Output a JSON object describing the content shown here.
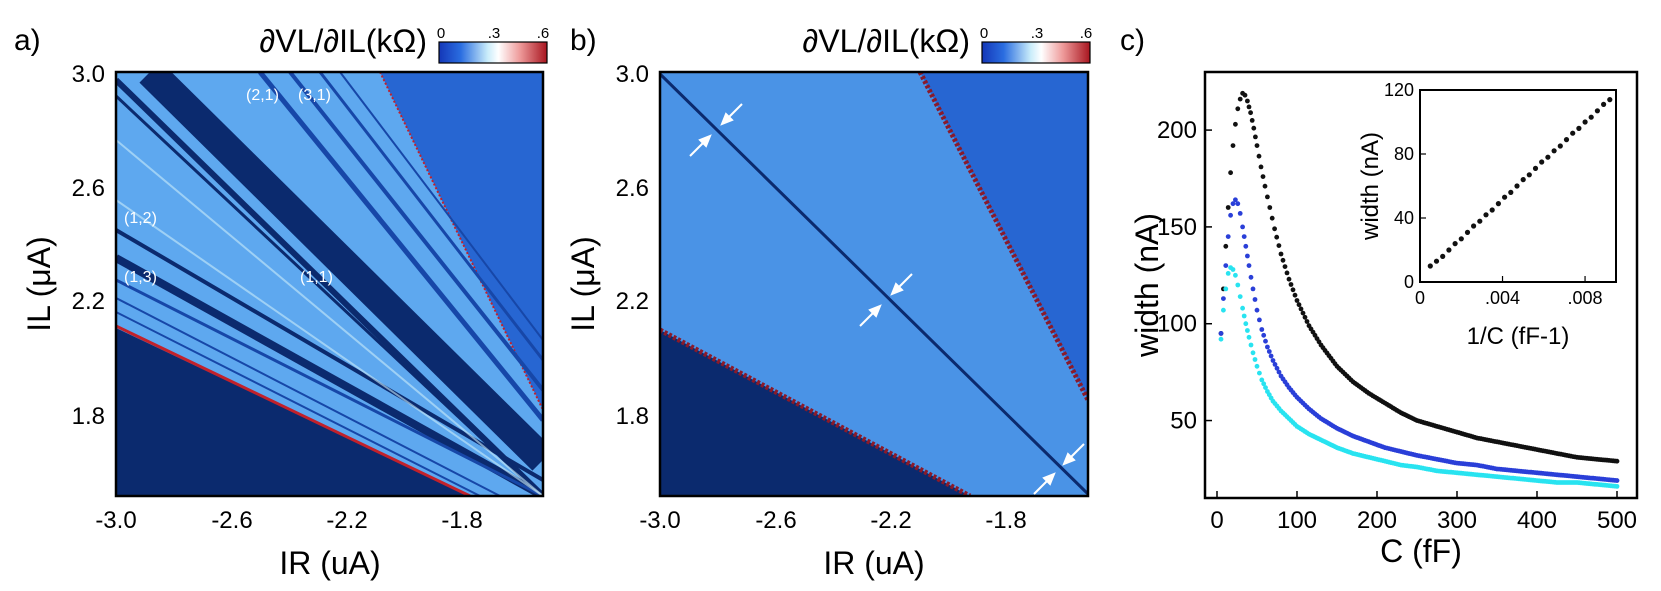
{
  "figure": {
    "panel_a_label": "a)",
    "panel_b_label": "b)",
    "panel_c_label": "c)"
  },
  "panels": {
    "a": {
      "colorbar_title": "∂VL/∂IL(kΩ)",
      "colorbar_ticks": [
        "0",
        ".3",
        ".6"
      ],
      "x_ticks": [
        "-3.0",
        "-2.6",
        "-2.2",
        "-1.8"
      ],
      "y_ticks": [
        "3.0",
        "2.6",
        "2.2",
        "1.8"
      ],
      "x_label": "IR (uA)",
      "y_label": "IL (μA)",
      "annotations": [
        "(2,1)",
        "(3,1)",
        "(1,2)",
        "(1,3)",
        "(1,1)"
      ]
    },
    "b": {
      "colorbar_title": "∂VL/∂IL(kΩ)",
      "colorbar_ticks": [
        "0",
        ".3",
        ".6"
      ],
      "x_ticks": [
        "-3.0",
        "-2.6",
        "-2.2",
        "-1.8"
      ],
      "y_ticks": [
        "3.0",
        "2.6",
        "2.2",
        "1.8"
      ],
      "x_label": "IR (uA)",
      "y_label": "IL (μA)"
    }
  },
  "colors": {
    "dark_blue": "#0b2a6e",
    "mid_blue": "#2f6fd6",
    "light_blue": "#5ea8ef",
    "red": "#c2212b",
    "black_series": "#111111",
    "blue_series": "#2a3fd8",
    "cyan_series": "#28e3f0"
  },
  "chart_data": [
    {
      "type": "heatmap",
      "panel": "a",
      "xlabel": "IR (uA)",
      "ylabel": "IL (μA)",
      "xlim": [
        -3.0,
        -1.52
      ],
      "ylim": [
        1.5,
        3.0
      ],
      "colorbar": {
        "label": "∂VL/∂IL(kΩ)",
        "range": [
          0,
          0.6
        ]
      },
      "annotations": [
        "(2,1)",
        "(3,1)",
        "(1,2)",
        "(1,3)",
        "(1,1)"
      ]
    },
    {
      "type": "heatmap",
      "panel": "b",
      "xlabel": "IR (uA)",
      "ylabel": "IL (μA)",
      "xlim": [
        -3.0,
        -1.52
      ],
      "ylim": [
        1.5,
        3.0
      ],
      "colorbar": {
        "label": "∂VL/∂IL(kΩ)",
        "range": [
          0,
          0.6
        ]
      }
    },
    {
      "type": "scatter",
      "panel": "c",
      "xlabel": "C (fF)",
      "ylabel": "width (nA)",
      "xlim": [
        -15,
        525
      ],
      "ylim": [
        10,
        230
      ],
      "x_ticks": [
        "0",
        "100",
        "200",
        "300",
        "400",
        "500"
      ],
      "y_ticks": [
        "50",
        "100",
        "150",
        "200"
      ],
      "series": [
        {
          "name": "black",
          "color": "#111111",
          "x": [
            5,
            8,
            11,
            14,
            17,
            20,
            23,
            26,
            29,
            32,
            35,
            38,
            42,
            46,
            50,
            55,
            60,
            66,
            72,
            80,
            90,
            100,
            115,
            130,
            150,
            170,
            190,
            210,
            230,
            250,
            275,
            300,
            325,
            350,
            375,
            400,
            425,
            450,
            475,
            500
          ],
          "y": [
            95,
            118,
            140,
            160,
            178,
            192,
            203,
            211,
            216,
            219,
            218,
            215,
            209,
            201,
            192,
            181,
            171,
            160,
            149,
            136,
            123,
            112,
            99,
            89,
            78,
            70,
            64,
            59,
            54,
            50,
            47,
            44,
            41,
            39,
            37,
            35,
            33,
            31,
            30,
            29
          ]
        },
        {
          "name": "blue",
          "color": "#2a3fd8",
          "x": [
            5,
            8,
            11,
            14,
            17,
            20,
            23,
            26,
            29,
            32,
            36,
            40,
            45,
            50,
            56,
            63,
            70,
            80,
            90,
            100,
            115,
            130,
            150,
            170,
            190,
            210,
            230,
            250,
            275,
            300,
            325,
            350,
            375,
            400,
            425,
            450,
            475,
            500
          ],
          "y": [
            95,
            113,
            130,
            145,
            156,
            162,
            164,
            162,
            157,
            150,
            140,
            130,
            118,
            107,
            97,
            88,
            81,
            73,
            67,
            62,
            56,
            51,
            46,
            42,
            39,
            36,
            34,
            32,
            30,
            28,
            27,
            25,
            24,
            23,
            22,
            21,
            20,
            19
          ]
        },
        {
          "name": "cyan",
          "color": "#28e3f0",
          "x": [
            5,
            8,
            11,
            14,
            17,
            20,
            23,
            26,
            29,
            32,
            36,
            40,
            45,
            50,
            56,
            63,
            70,
            80,
            90,
            100,
            115,
            130,
            150,
            170,
            190,
            210,
            230,
            250,
            275,
            300,
            325,
            350,
            375,
            400,
            425,
            450,
            475,
            500
          ],
          "y": [
            92,
            107,
            118,
            126,
            129,
            128,
            125,
            120,
            114,
            108,
            100,
            93,
            85,
            78,
            71,
            65,
            60,
            55,
            51,
            47,
            43,
            40,
            36,
            33,
            31,
            29,
            27,
            26,
            24,
            23,
            22,
            21,
            20,
            19,
            18,
            18,
            17,
            16
          ]
        }
      ],
      "inset": {
        "type": "scatter",
        "xlabel": "1/C (fF-1)",
        "ylabel": "width (nA)",
        "xlim": [
          0,
          0.0095
        ],
        "ylim": [
          0,
          120
        ],
        "x_ticks": [
          "0",
          ".004",
          ".008"
        ],
        "y_ticks": [
          "0",
          "40",
          "80",
          "120"
        ],
        "x": [
          0.0005,
          0.0008,
          0.0011,
          0.0014,
          0.0017,
          0.002,
          0.0023,
          0.0026,
          0.0029,
          0.0032,
          0.0035,
          0.0038,
          0.0041,
          0.0044,
          0.0047,
          0.005,
          0.0053,
          0.0056,
          0.0059,
          0.0062,
          0.0065,
          0.0068,
          0.0071,
          0.0074,
          0.0077,
          0.008,
          0.0083,
          0.0086,
          0.0089,
          0.0092
        ],
        "y": [
          10,
          13,
          16,
          20,
          24,
          27,
          31,
          35,
          38,
          42,
          45,
          49,
          53,
          56,
          60,
          64,
          67,
          71,
          75,
          78,
          82,
          85,
          89,
          93,
          96,
          100,
          103,
          107,
          111,
          114
        ]
      }
    }
  ]
}
